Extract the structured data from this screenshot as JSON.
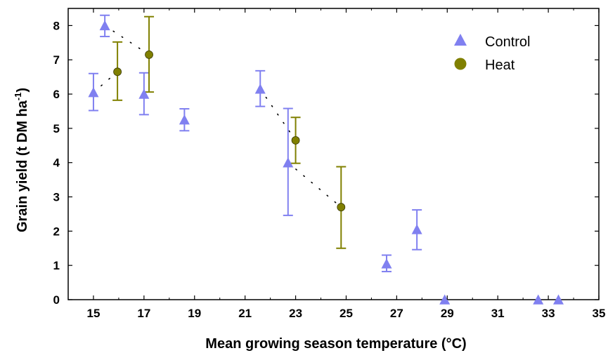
{
  "chart_data": {
    "type": "scatter",
    "title": "",
    "xlabel": "Mean growing season temperature (°C)",
    "ylabel": {
      "pre": "Grain yield (t DM ha",
      "sup": "-1",
      "post": ")"
    },
    "xlim": [
      14,
      35
    ],
    "ylim": [
      0,
      8.5
    ],
    "xticks": [
      "15",
      "17",
      "19",
      "21",
      "23",
      "25",
      "27",
      "29",
      "31",
      "33",
      "35"
    ],
    "yticks": [
      "0",
      "1",
      "2",
      "3",
      "4",
      "5",
      "6",
      "7",
      "8"
    ],
    "legend_position": "top-right",
    "series": [
      {
        "name": "Control",
        "marker": "triangle",
        "color": "#8080f0",
        "points": [
          {
            "x": 15.0,
            "y": 6.05,
            "lo": 5.52,
            "hi": 6.6
          },
          {
            "x": 15.45,
            "y": 8.0,
            "lo": 7.68,
            "hi": 8.3
          },
          {
            "x": 17.0,
            "y": 6.0,
            "lo": 5.4,
            "hi": 6.62
          },
          {
            "x": 18.6,
            "y": 5.25,
            "lo": 4.93,
            "hi": 5.57
          },
          {
            "x": 21.6,
            "y": 6.15,
            "lo": 5.64,
            "hi": 6.68
          },
          {
            "x": 22.7,
            "y": 4.0,
            "lo": 2.46,
            "hi": 5.58
          },
          {
            "x": 26.6,
            "y": 1.05,
            "lo": 0.82,
            "hi": 1.3
          },
          {
            "x": 27.8,
            "y": 2.05,
            "lo": 1.46,
            "hi": 2.62
          },
          {
            "x": 28.9,
            "y": 0.0
          },
          {
            "x": 32.6,
            "y": 0.0
          },
          {
            "x": 33.4,
            "y": 0.0
          }
        ]
      },
      {
        "name": "Heat",
        "marker": "circle",
        "color": "#808000",
        "points": [
          {
            "x": 15.95,
            "y": 6.65,
            "lo": 5.82,
            "hi": 7.52
          },
          {
            "x": 17.2,
            "y": 7.15,
            "lo": 6.06,
            "hi": 8.26
          },
          {
            "x": 23.0,
            "y": 4.65,
            "lo": 3.98,
            "hi": 5.32
          },
          {
            "x": 24.8,
            "y": 2.7,
            "lo": 1.5,
            "hi": 3.88
          }
        ]
      }
    ],
    "dotted_links": [
      {
        "from": [
          15.0,
          6.05
        ],
        "to": [
          15.95,
          6.65
        ]
      },
      {
        "from": [
          15.45,
          8.0
        ],
        "to": [
          17.2,
          7.15
        ]
      },
      {
        "from": [
          21.6,
          6.15
        ],
        "to": [
          23.0,
          4.65
        ]
      },
      {
        "from": [
          22.7,
          4.0
        ],
        "to": [
          24.8,
          2.7
        ]
      }
    ]
  }
}
